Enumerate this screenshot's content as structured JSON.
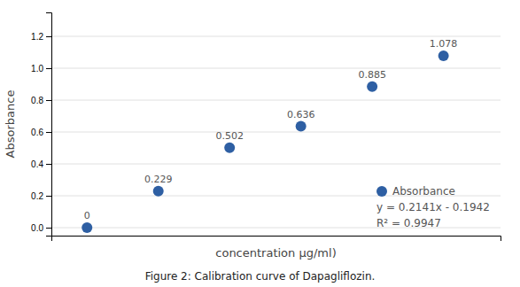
{
  "chart_data": {
    "type": "scatter",
    "x": [
      1,
      2,
      3,
      4,
      5,
      6
    ],
    "series": [
      {
        "name": "Absorbance",
        "color": "#2e5fa3",
        "values": [
          0.0,
          0.229,
          0.502,
          0.636,
          0.885,
          1.078
        ]
      }
    ],
    "data_labels": true,
    "legend": "lower right",
    "annotations": [
      "y = 0.2141x - 0.1942",
      "R² = 0.9947"
    ],
    "x_label": "concentration μg/ml)",
    "y_label": "Absorbance",
    "caption": "Figure 2: Calibration curve of Dapagliflozin.",
    "xlim": [
      0.5,
      6.8
    ],
    "ylim": [
      -0.05,
      1.35
    ],
    "xticks": [],
    "yticks": [
      {
        "value": 0,
        "label": "0.0"
      },
      0.2,
      0.4,
      0.6,
      0.8,
      {
        "value": 1.0,
        "label": "1.0"
      },
      1.2
    ],
    "grid": true,
    "tick_labels": "y"
  }
}
